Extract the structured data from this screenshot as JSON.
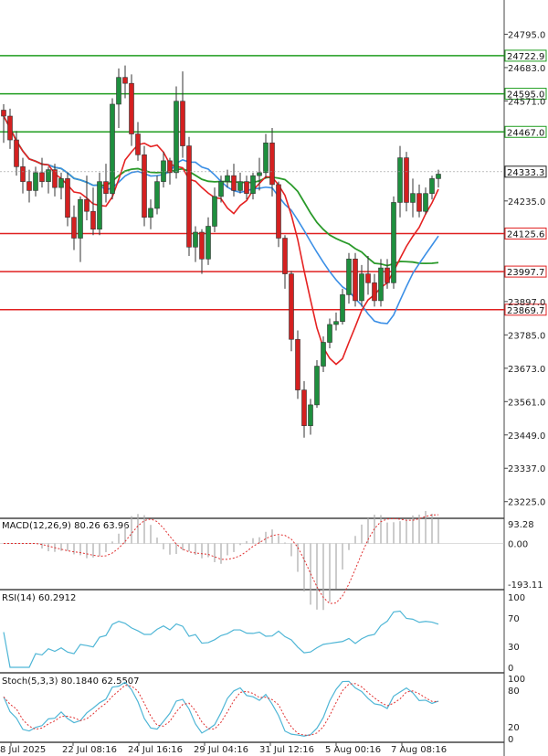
{
  "chart_data": {
    "type": "candlestick",
    "price_axis": {
      "ticks": [
        24795.0,
        24683.0,
        24571.0,
        24235.0,
        23897.0,
        23785.0,
        23673.0,
        23561.0,
        23449.0,
        23337.0,
        23225.0
      ],
      "current_price": "24333.3",
      "ylim": [
        23175,
        24910
      ]
    },
    "x_labels": [
      "8 Jul 2025",
      "22 Jul 08:16",
      "24 Jul 16:16",
      "29 Jul 04:16",
      "31 Jul 12:16",
      "5 Aug 00:16",
      "7 Aug 08:16"
    ],
    "levels": [
      {
        "label": "24722.9",
        "value": 24722.9,
        "color": "#1f9d1f"
      },
      {
        "label": "24595.0",
        "value": 24595.0,
        "color": "#1f9d1f"
      },
      {
        "label": "24467.0",
        "value": 24467.0,
        "color": "#1f9d1f"
      },
      {
        "label": "24125.6",
        "value": 24125.6,
        "color": "#e02020"
      },
      {
        "label": "23997.7",
        "value": 23997.7,
        "color": "#e02020"
      },
      {
        "label": "23869.7",
        "value": 23869.7,
        "color": "#e02020"
      }
    ],
    "candles": [
      [
        24540,
        24560,
        24430,
        24520
      ],
      [
        24520,
        24545,
        24410,
        24440
      ],
      [
        24440,
        24470,
        24320,
        24350
      ],
      [
        24350,
        24380,
        24260,
        24300
      ],
      [
        24300,
        24340,
        24230,
        24270
      ],
      [
        24270,
        24350,
        24250,
        24330
      ],
      [
        24330,
        24380,
        24280,
        24300
      ],
      [
        24300,
        24350,
        24260,
        24340
      ],
      [
        24340,
        24360,
        24250,
        24280
      ],
      [
        24280,
        24330,
        24240,
        24310
      ],
      [
        24310,
        24330,
        24150,
        24180
      ],
      [
        24180,
        24220,
        24070,
        24110
      ],
      [
        24110,
        24250,
        24030,
        24240
      ],
      [
        24240,
        24320,
        24170,
        24200
      ],
      [
        24200,
        24280,
        24120,
        24140
      ],
      [
        24140,
        24330,
        24120,
        24300
      ],
      [
        24300,
        24360,
        24230,
        24260
      ],
      [
        24260,
        24580,
        24240,
        24560
      ],
      [
        24560,
        24680,
        24480,
        24650
      ],
      [
        24650,
        24690,
        24580,
        24630
      ],
      [
        24630,
        24660,
        24420,
        24460
      ],
      [
        24460,
        24500,
        24370,
        24390
      ],
      [
        24390,
        24420,
        24150,
        24180
      ],
      [
        24180,
        24240,
        24140,
        24210
      ],
      [
        24210,
        24320,
        24190,
        24300
      ],
      [
        24300,
        24400,
        24280,
        24370
      ],
      [
        24370,
        24380,
        24290,
        24330
      ],
      [
        24330,
        24620,
        24310,
        24570
      ],
      [
        24570,
        24670,
        24380,
        24420
      ],
      [
        24420,
        24450,
        24050,
        24080
      ],
      [
        24080,
        24150,
        24030,
        24130
      ],
      [
        24130,
        24140,
        23990,
        24040
      ],
      [
        24040,
        24180,
        24020,
        24150
      ],
      [
        24150,
        24280,
        24130,
        24250
      ],
      [
        24250,
        24320,
        24230,
        24300
      ],
      [
        24300,
        24340,
        24280,
        24320
      ],
      [
        24320,
        24360,
        24250,
        24270
      ],
      [
        24270,
        24330,
        24260,
        24300
      ],
      [
        24300,
        24320,
        24240,
        24260
      ],
      [
        24260,
        24330,
        24240,
        24320
      ],
      [
        24320,
        24380,
        24270,
        24330
      ],
      [
        24330,
        24460,
        24310,
        24430
      ],
      [
        24430,
        24480,
        24250,
        24290
      ],
      [
        24290,
        24300,
        24080,
        24110
      ],
      [
        24110,
        24120,
        23940,
        23990
      ],
      [
        23990,
        24000,
        23730,
        23770
      ],
      [
        23770,
        23800,
        23570,
        23600
      ],
      [
        23600,
        23630,
        23440,
        23480
      ],
      [
        23480,
        23570,
        23450,
        23550
      ],
      [
        23550,
        23700,
        23540,
        23680
      ],
      [
        23680,
        23780,
        23660,
        23760
      ],
      [
        23760,
        23840,
        23740,
        23820
      ],
      [
        23820,
        23860,
        23800,
        23830
      ],
      [
        23830,
        23940,
        23820,
        23920
      ],
      [
        23920,
        24060,
        23890,
        24040
      ],
      [
        24040,
        24060,
        23880,
        23900
      ],
      [
        23900,
        24020,
        23880,
        23990
      ],
      [
        23990,
        24050,
        23920,
        23960
      ],
      [
        23960,
        23990,
        23880,
        23900
      ],
      [
        23900,
        24040,
        23880,
        24010
      ],
      [
        24010,
        24040,
        23940,
        23960
      ],
      [
        23960,
        24250,
        23940,
        24230
      ],
      [
        24230,
        24420,
        24180,
        24380
      ],
      [
        24380,
        24400,
        24200,
        24230
      ],
      [
        24230,
        24310,
        24180,
        24260
      ],
      [
        24260,
        24290,
        24180,
        24200
      ],
      [
        24200,
        24280,
        24190,
        24260
      ],
      [
        24260,
        24320,
        24240,
        24310
      ],
      [
        24310,
        24340,
        24280,
        24325
      ]
    ],
    "indicators": {
      "macd": {
        "label": "MACD(12,26,9) 80.26 63.96",
        "ticks": [
          "93.28",
          "0.00",
          "-193.11"
        ]
      },
      "rsi": {
        "label": "RSI(14) 60.2912",
        "ticks": [
          "100",
          "70",
          "30",
          "0"
        ]
      },
      "stoch": {
        "label": "Stoch(5,3,3) 80.1840 62.5507",
        "ticks": [
          "100",
          "80",
          "20",
          "0"
        ]
      }
    },
    "colors": {
      "up": "#1e8f3e",
      "down": "#d42020",
      "ma_red": "#e52222",
      "ma_green": "#2a9a2a",
      "ma_blue": "#3b8fe6",
      "indicator_line": "#4fb6d6",
      "signal": "#e03030"
    }
  }
}
